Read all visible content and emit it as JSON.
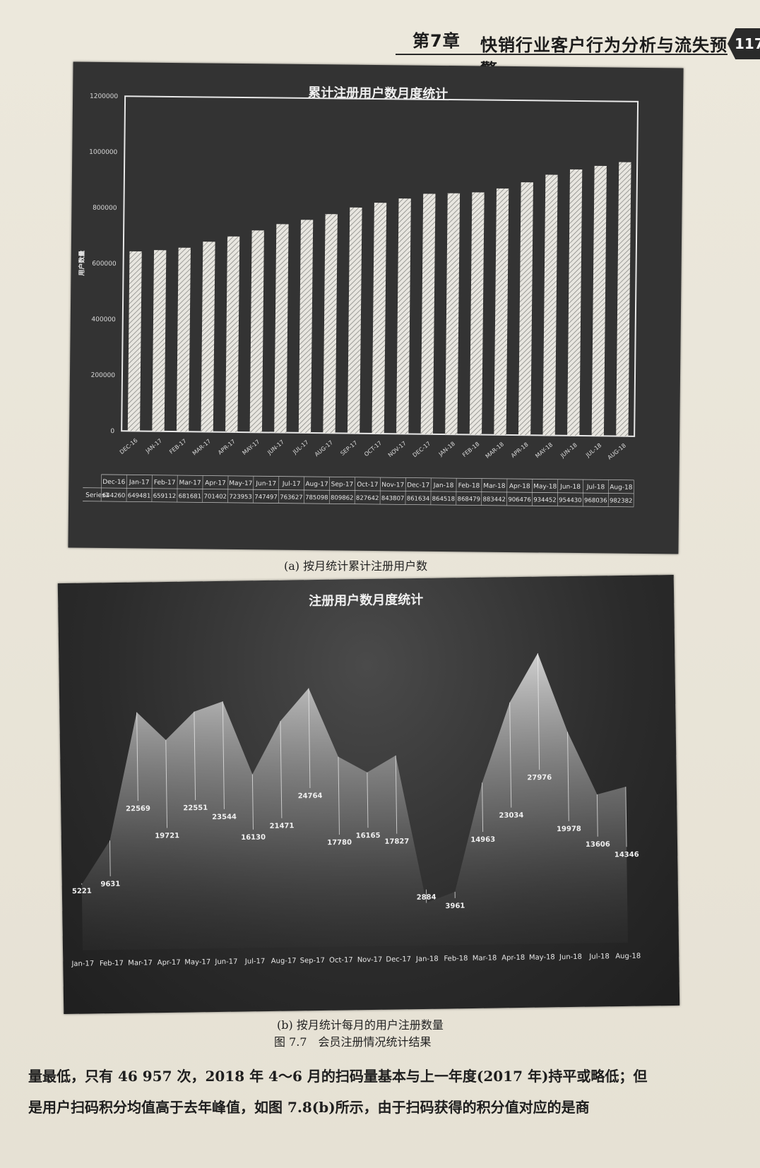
{
  "header": {
    "chapter": "第7章",
    "title": "快销行业客户行为分析与流失预警",
    "page_number": "117"
  },
  "captions": {
    "a": "(a) 按月统计累计注册用户数",
    "b": "(b) 按月统计每月的用户注册数量",
    "figure": "图 7.7　会员注册情况统计结果"
  },
  "body_text": [
    "量最低，只有 46 957 次，2018 年 4～6 月的扫码量基本与上一年度(2017 年)持平或略低；但",
    "是用户扫码积分均值高于去年峰值，如图 7.8(b)所示，由于扫码获得的积分值对应的是商"
  ],
  "chart_data": [
    {
      "type": "bar",
      "title": "累计注册用户数月度统计",
      "ylabel": "用户数量",
      "ylim": [
        0,
        1200000
      ],
      "yticks": [
        "0",
        "200000",
        "400000",
        "600000",
        "800000",
        "1000000",
        "1200000"
      ],
      "categories": [
        "DEC-16",
        "JAN-17",
        "FEB-17",
        "MAR-17",
        "APR-17",
        "MAY-17",
        "JUN-17",
        "JUL-17",
        "AUG-17",
        "SEP-17",
        "OCT-17",
        "NOV-17",
        "DEC-17",
        "JAN-18",
        "FEB-18",
        "MAR-18",
        "APR-18",
        "MAY-18",
        "JUN-18",
        "JUL-18",
        "AUG-18"
      ],
      "table_header": [
        "Dec-16",
        "Jan-17",
        "Feb-17",
        "Mar-17",
        "Apr-17",
        "May-17",
        "Jun-17",
        "Jul-17",
        "Aug-17",
        "Sep-17",
        "Oct-17",
        "Nov-17",
        "Dec-17",
        "Jan-18",
        "Feb-18",
        "Mar-18",
        "Apr-18",
        "May-18",
        "Jun-18",
        "Jul-18",
        "Aug-18"
      ],
      "series": [
        {
          "name": "Series1",
          "values": [
            644260,
            649481,
            659112,
            681681,
            701402,
            723953,
            747497,
            763627,
            785098,
            809862,
            827642,
            843807,
            861634,
            864518,
            868479,
            883442,
            906476,
            934452,
            954430,
            968036,
            982382
          ]
        }
      ],
      "grid": false
    },
    {
      "type": "area",
      "title": "注册用户数月度统计",
      "categories": [
        "Jan-17",
        "Feb-17",
        "Mar-17",
        "Apr-17",
        "May-17",
        "Jun-17",
        "Jul-17",
        "Aug-17",
        "Sep-17",
        "Oct-17",
        "Nov-17",
        "Dec-17",
        "Jan-18",
        "Feb-18",
        "Mar-18",
        "Apr-18",
        "May-18",
        "Jun-18",
        "Jul-18",
        "Aug-18"
      ],
      "values": [
        5221,
        9631,
        22569,
        19721,
        22551,
        23544,
        16130,
        21471,
        24764,
        17780,
        16165,
        17827,
        2884,
        3961,
        14963,
        23034,
        27976,
        19978,
        13606,
        14346
      ],
      "ylim": [
        0,
        30000
      ],
      "grid": false
    }
  ]
}
